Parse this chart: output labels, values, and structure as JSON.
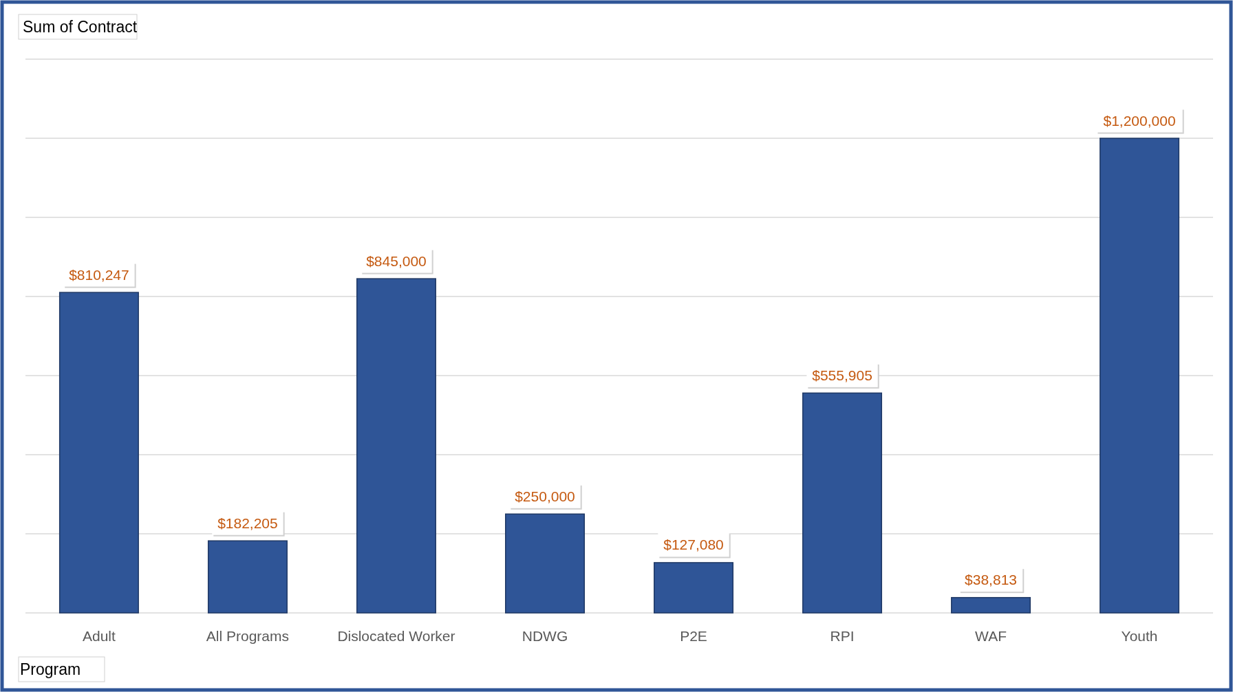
{
  "chart_data": {
    "type": "bar",
    "title": "Sum of Contract",
    "xlabel": "Program",
    "categories": [
      "Adult",
      "All Programs",
      "Dislocated Worker",
      "NDWG",
      "P2E",
      "RPI",
      "WAF",
      "Youth"
    ],
    "values": [
      810247,
      182205,
      845000,
      250000,
      127080,
      555905,
      38813,
      1200000
    ],
    "color": "#2f5597",
    "value_labels": [
      "$810,247",
      "$182,205",
      "$845,000",
      "$250,000",
      "$127,080",
      "$555,905",
      "$38,813",
      "$1,200,000"
    ],
    "ylim": [
      0,
      1400000
    ],
    "yticks": [
      {
        "value": 0,
        "label": null
      },
      {
        "value": 200000,
        "label": null
      },
      {
        "value": 400000,
        "label": null
      },
      {
        "value": 600000,
        "label": null
      },
      {
        "value": 800000,
        "label": null
      },
      {
        "value": 1000000,
        "label": null
      },
      {
        "value": 1200000,
        "label": null
      },
      {
        "value": 1400000,
        "label": null
      }
    ],
    "grid": "y",
    "tick_labels": "x"
  }
}
